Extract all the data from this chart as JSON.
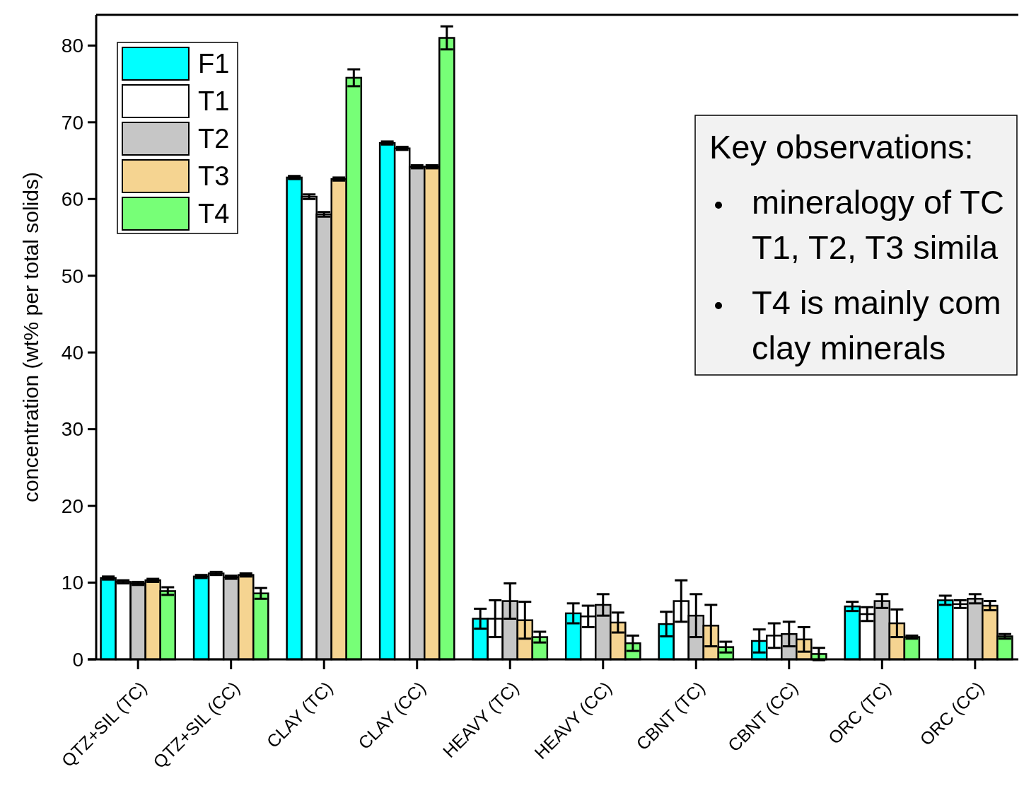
{
  "chart_data": {
    "type": "bar",
    "ylabel": "concentration (wt% per total solids)",
    "categories": [
      "QTZ+SIL (TC)",
      "QTZ+SIL (CC)",
      "CLAY (TC)",
      "CLAY (CC)",
      "HEAVY (TC)",
      "HEAVY (CC)",
      "CBNT (TC)",
      "CBNT (CC)",
      "ORC (TC)",
      "ORC (CC)"
    ],
    "series": [
      {
        "name": "F1",
        "color": "#00ffff",
        "values": [
          10.6,
          10.8,
          62.8,
          67.3,
          5.3,
          6.0,
          4.6,
          2.4,
          6.9,
          7.7
        ],
        "errors": [
          0.2,
          0.2,
          0.2,
          0.2,
          1.3,
          1.3,
          1.6,
          1.5,
          0.6,
          0.6
        ]
      },
      {
        "name": "T1",
        "color": "#ffffff",
        "values": [
          10.1,
          11.2,
          60.3,
          66.6,
          5.3,
          5.6,
          7.6,
          3.1,
          5.9,
          7.2
        ],
        "errors": [
          0.2,
          0.2,
          0.3,
          0.2,
          2.4,
          1.4,
          2.7,
          1.6,
          0.9,
          0.5
        ]
      },
      {
        "name": "T2",
        "color": "#c6c6c6",
        "values": [
          9.9,
          10.7,
          58.0,
          64.2,
          7.6,
          7.1,
          5.7,
          3.3,
          7.6,
          7.9
        ],
        "errors": [
          0.2,
          0.2,
          0.3,
          0.2,
          2.3,
          1.4,
          2.8,
          1.6,
          0.9,
          0.6
        ]
      },
      {
        "name": "T3",
        "color": "#f5d491",
        "values": [
          10.3,
          11.0,
          62.6,
          64.2,
          5.1,
          4.8,
          4.4,
          2.6,
          4.7,
          7.0
        ],
        "errors": [
          0.2,
          0.2,
          0.2,
          0.2,
          2.4,
          1.3,
          2.7,
          1.6,
          1.8,
          0.6
        ]
      },
      {
        "name": "T4",
        "color": "#77ff77",
        "values": [
          8.9,
          8.6,
          75.8,
          81.0,
          2.9,
          2.1,
          1.6,
          0.7,
          2.9,
          3.0
        ],
        "errors": [
          0.5,
          0.7,
          1.1,
          1.5,
          0.7,
          1.0,
          0.7,
          0.8,
          0.2,
          0.3
        ]
      }
    ],
    "ylim": [
      0,
      84
    ],
    "yticks": [
      0,
      10,
      20,
      30,
      40,
      50,
      60,
      70,
      80
    ],
    "legend": "top left",
    "annotations": [
      "Key observations:",
      "mineralogy of TC\nT1, T2, T3 simila",
      "T4 is mainly com\nclay minerals"
    ]
  }
}
